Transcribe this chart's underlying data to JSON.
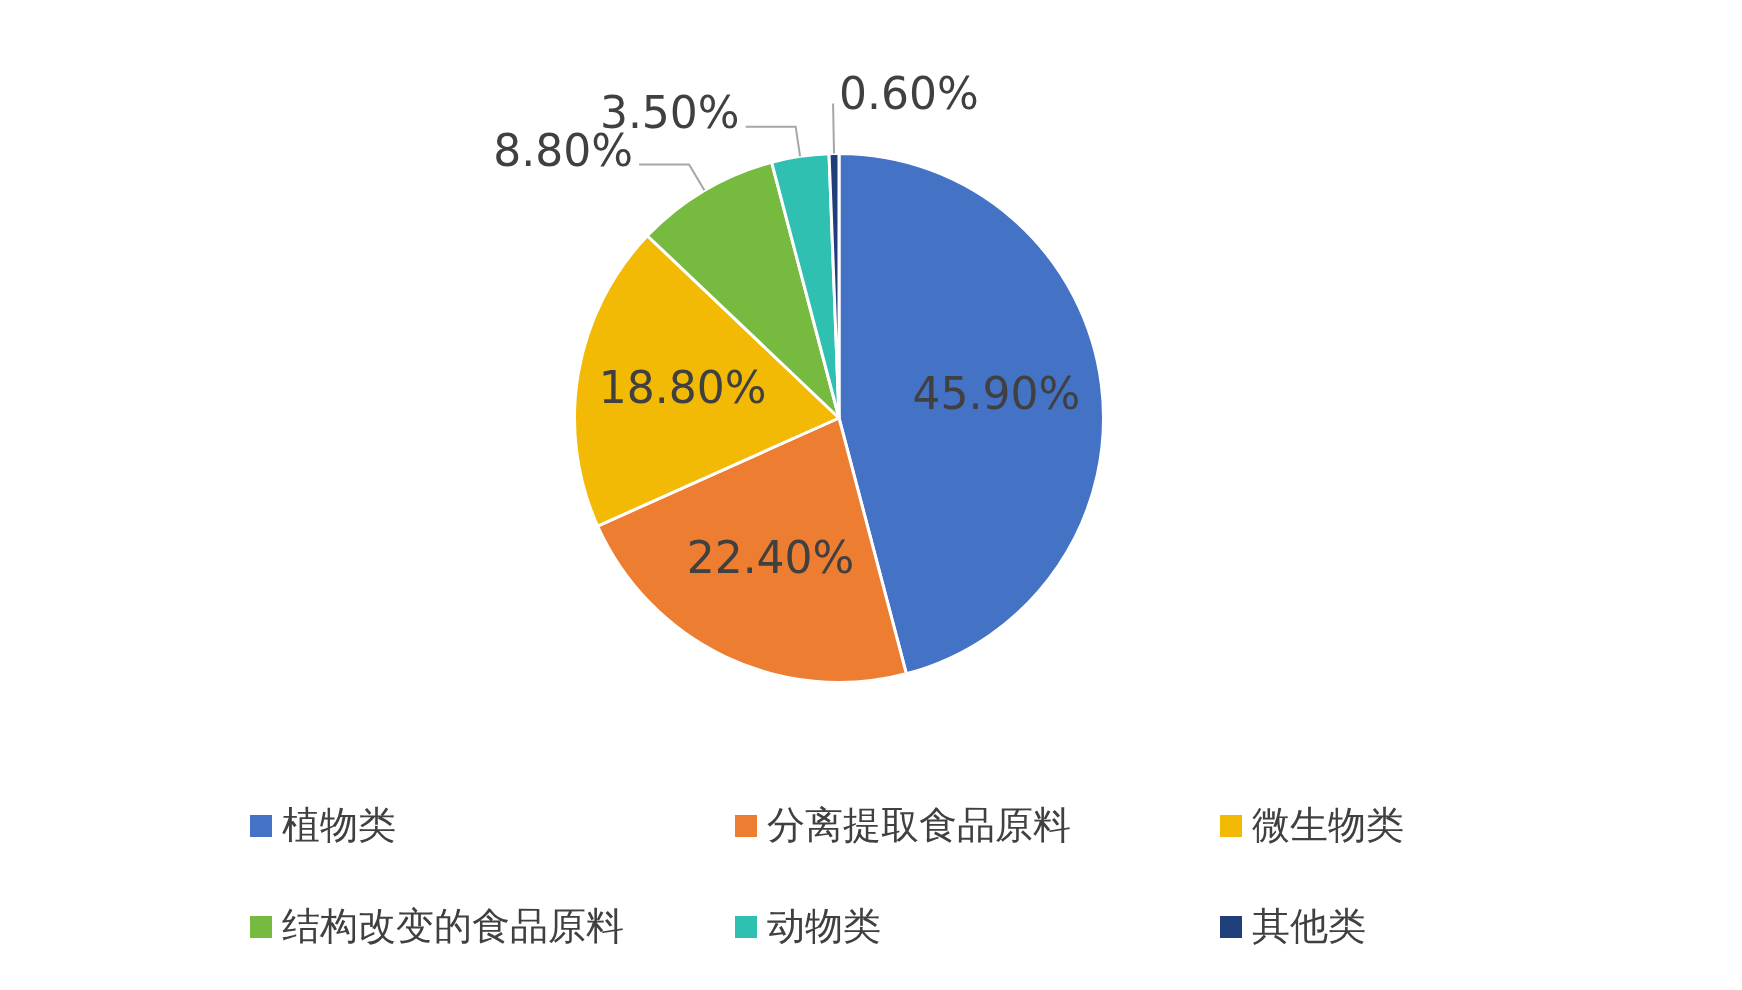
{
  "chart_data": {
    "type": "pie",
    "categories": [
      "植物类",
      "分离提取食品原料",
      "微生物类",
      "结构改变的食品原料",
      "动物类",
      "其他类"
    ],
    "values": [
      45.9,
      22.4,
      18.8,
      8.8,
      3.5,
      0.6
    ],
    "value_labels": [
      "45.90%",
      "22.40%",
      "18.80%",
      "8.80%",
      "3.50%",
      "0.60%"
    ],
    "colors": [
      "#4472c4",
      "#ed7d31",
      "#f2b905",
      "#76bb40",
      "#2fc0b2",
      "#203f7a"
    ],
    "legend": "bottom"
  }
}
